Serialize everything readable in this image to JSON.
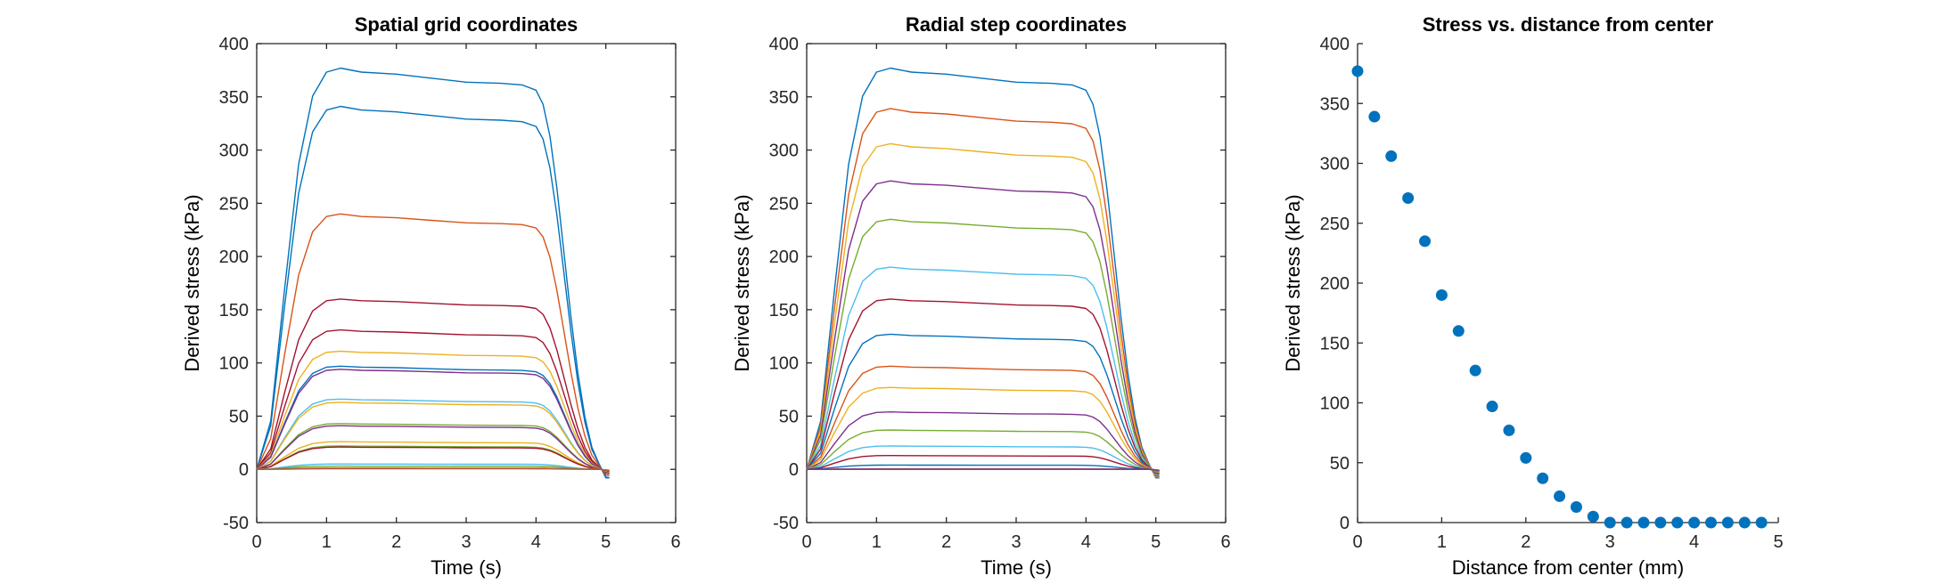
{
  "chart_data": [
    {
      "type": "line",
      "title": "Spatial grid coordinates",
      "xlabel": "Time (s)",
      "ylabel": "Derived stress (kPa)",
      "xlim": [
        0,
        6
      ],
      "ylim": [
        -50,
        400
      ],
      "xticks": [
        "0",
        "1",
        "2",
        "3",
        "4",
        "5",
        "6"
      ],
      "yticks": [
        "-50",
        "0",
        "50",
        "100",
        "150",
        "200",
        "250",
        "300",
        "350",
        "400"
      ],
      "grid": false,
      "box": true,
      "series_plateaus_kPa": [
        377,
        341,
        240,
        160,
        131,
        111,
        97,
        94,
        66,
        63,
        43,
        41,
        26,
        22,
        21,
        5,
        3,
        1,
        0.5
      ],
      "series_colors": [
        "#0072BD",
        "#0072BD",
        "#D95319",
        "#A2142F",
        "#A2142F",
        "#EDB120",
        "#0072BD",
        "#7E2F8E",
        "#4DBEEE",
        "#EDB120",
        "#77AC30",
        "#7E2F8E",
        "#EDB120",
        "#77AC30",
        "#A2142F",
        "#4DBEEE",
        "#77AC30",
        "#0072BD",
        "#D95319"
      ],
      "profile_time_s": [
        0,
        0.2,
        0.4,
        0.6,
        0.8,
        1.0,
        1.2,
        1.5,
        2.0,
        2.5,
        3.0,
        3.5,
        3.8,
        4.0,
        4.1,
        4.2,
        4.3,
        4.4,
        4.5,
        4.6,
        4.7,
        4.8,
        4.9,
        5.0
      ],
      "profile_fraction": [
        0,
        0.12,
        0.45,
        0.76,
        0.93,
        0.99,
        1.0,
        0.99,
        0.985,
        0.975,
        0.965,
        0.962,
        0.958,
        0.945,
        0.91,
        0.83,
        0.7,
        0.54,
        0.38,
        0.24,
        0.13,
        0.055,
        0.015,
        0
      ]
    },
    {
      "type": "line",
      "title": "Radial step coordinates",
      "xlabel": "Time (s)",
      "ylabel": "Derived stress (kPa)",
      "xlim": [
        0,
        6
      ],
      "ylim": [
        -50,
        400
      ],
      "xticks": [
        "0",
        "1",
        "2",
        "3",
        "4",
        "5",
        "6"
      ],
      "yticks": [
        "-50",
        "0",
        "50",
        "100",
        "150",
        "200",
        "250",
        "300",
        "350",
        "400"
      ],
      "grid": false,
      "box": true,
      "series_plateaus_kPa": [
        377,
        339,
        306,
        271,
        235,
        190,
        160,
        127,
        97,
        77,
        54,
        37,
        22,
        13,
        4,
        0.5,
        0.3,
        0.2,
        0.1,
        0.1,
        0.1,
        0.1,
        0.1,
        0.1,
        0.1
      ],
      "series_colors": [
        "#0072BD",
        "#D95319",
        "#EDB120",
        "#7E2F8E",
        "#77AC30",
        "#4DBEEE",
        "#A2142F",
        "#0072BD",
        "#D95319",
        "#EDB120",
        "#7E2F8E",
        "#77AC30",
        "#4DBEEE",
        "#A2142F",
        "#0072BD",
        "#D95319",
        "#EDB120",
        "#7E2F8E",
        "#77AC30",
        "#4DBEEE",
        "#A2142F",
        "#0072BD",
        "#D95319",
        "#EDB120",
        "#7E2F8E"
      ],
      "profile_time_s": [
        0,
        0.2,
        0.4,
        0.6,
        0.8,
        1.0,
        1.2,
        1.5,
        2.0,
        2.5,
        3.0,
        3.5,
        3.8,
        4.0,
        4.1,
        4.2,
        4.3,
        4.4,
        4.5,
        4.6,
        4.7,
        4.8,
        4.9,
        5.0
      ],
      "profile_fraction": [
        0,
        0.12,
        0.45,
        0.76,
        0.93,
        0.99,
        1.0,
        0.99,
        0.985,
        0.975,
        0.965,
        0.962,
        0.958,
        0.945,
        0.91,
        0.83,
        0.7,
        0.54,
        0.38,
        0.24,
        0.13,
        0.055,
        0.015,
        0
      ]
    },
    {
      "type": "scatter",
      "title": "Stress vs. distance from center",
      "xlabel": "Distance from center (mm)",
      "ylabel": "Derived stress (kPa)",
      "xlim": [
        0,
        5
      ],
      "ylim": [
        0,
        400
      ],
      "xticks": [
        "0",
        "1",
        "2",
        "3",
        "4",
        "5"
      ],
      "yticks": [
        "0",
        "50",
        "100",
        "150",
        "200",
        "250",
        "300",
        "350",
        "400"
      ],
      "grid": false,
      "box": false,
      "marker_color": "#0072BD",
      "x": [
        0,
        0.2,
        0.4,
        0.6,
        0.8,
        1.0,
        1.2,
        1.4,
        1.6,
        1.8,
        2.0,
        2.2,
        2.4,
        2.6,
        2.8,
        3.0,
        3.2,
        3.4,
        3.6,
        3.8,
        4.0,
        4.2,
        4.4,
        4.6,
        4.8
      ],
      "y": [
        377,
        339,
        306,
        271,
        235,
        190,
        160,
        127,
        97,
        77,
        54,
        37,
        22,
        13,
        5,
        0,
        0,
        0,
        0,
        0,
        0,
        0,
        0,
        0,
        0
      ]
    }
  ]
}
